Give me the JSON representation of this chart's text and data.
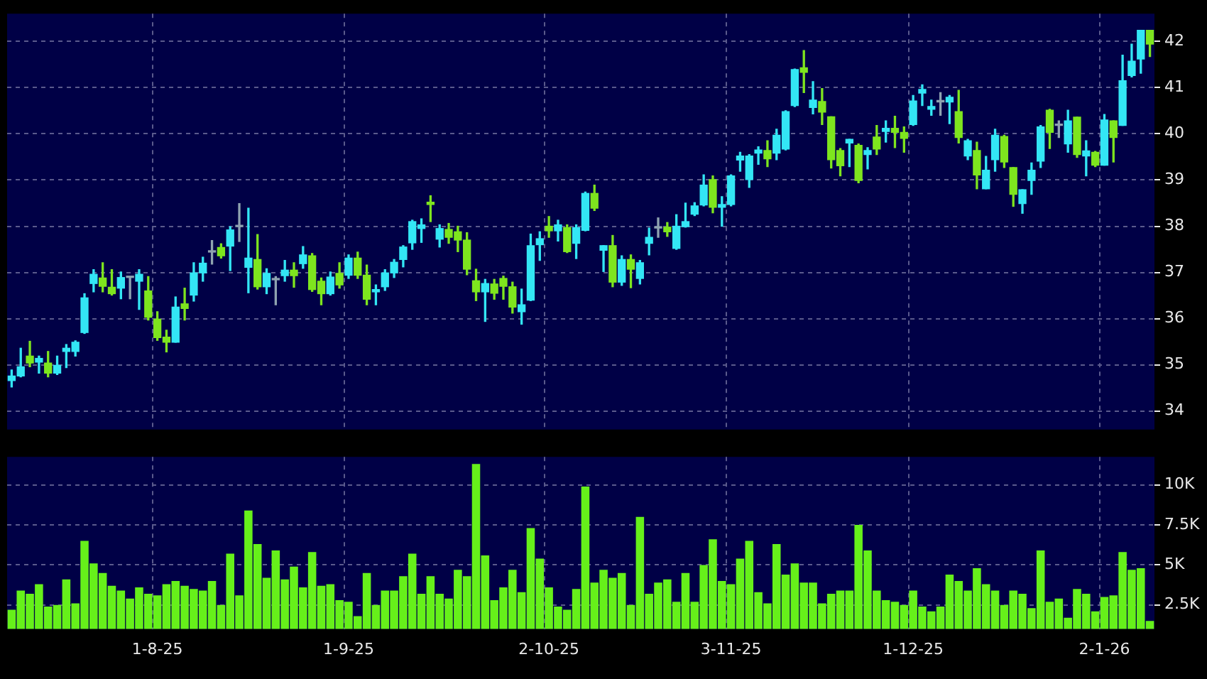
{
  "chart_data": [
    {
      "type": "candlestick",
      "categories": [
        null,
        null,
        null,
        null,
        null,
        null,
        null,
        null,
        null,
        null,
        null,
        null,
        null,
        null,
        null,
        null,
        null,
        null,
        null,
        null,
        null,
        null,
        null,
        null,
        null,
        null,
        null,
        null,
        null,
        null,
        null,
        null,
        null,
        null,
        null,
        null,
        null,
        null,
        null,
        null,
        null,
        null,
        null,
        null,
        null,
        null,
        null,
        null,
        null,
        null,
        null,
        null,
        null,
        null,
        null,
        null,
        null,
        null,
        null,
        null,
        null,
        null,
        null,
        null,
        null,
        null,
        null,
        null,
        null,
        null,
        null,
        null,
        null,
        null,
        null,
        null,
        null,
        null,
        null,
        null,
        null,
        null,
        null,
        null,
        null,
        null,
        null,
        null,
        null,
        null,
        null,
        null,
        null,
        null,
        null,
        null,
        null,
        null,
        null,
        null,
        null,
        null,
        null,
        null,
        null,
        null,
        null,
        null,
        null,
        null,
        null,
        null,
        null,
        null,
        null,
        null,
        null,
        null,
        null,
        null,
        null,
        null,
        null,
        null,
        null,
        null
      ],
      "ohlc": [
        [
          34.66,
          34.89,
          34.52,
          34.76
        ],
        [
          34.76,
          35.36,
          34.74,
          34.96
        ],
        [
          35.19,
          35.51,
          34.96,
          35.04
        ],
        [
          35.06,
          35.19,
          34.82,
          35.14
        ],
        [
          35.04,
          35.29,
          34.74,
          34.82
        ],
        [
          34.82,
          35.19,
          34.79,
          34.99
        ],
        [
          35.29,
          35.44,
          34.94,
          35.36
        ],
        [
          35.29,
          35.52,
          35.19,
          35.49
        ],
        [
          35.7,
          36.54,
          35.68,
          36.45
        ],
        [
          36.76,
          37.06,
          36.58,
          36.96
        ],
        [
          36.88,
          37.21,
          36.58,
          36.7
        ],
        [
          36.68,
          37.06,
          36.51,
          36.54
        ],
        [
          36.66,
          37.01,
          36.43,
          36.89
        ],
        [
          36.89,
          36.9,
          36.43,
          36.89
        ],
        [
          36.81,
          37.06,
          36.2,
          36.96
        ],
        [
          36.6,
          36.91,
          35.97,
          36.03
        ],
        [
          35.99,
          36.15,
          35.53,
          35.59
        ],
        [
          35.6,
          35.75,
          35.28,
          35.49
        ],
        [
          35.49,
          36.47,
          35.49,
          36.25
        ],
        [
          36.32,
          36.66,
          35.97,
          36.22
        ],
        [
          36.51,
          37.21,
          36.38,
          36.99
        ],
        [
          36.99,
          37.33,
          36.81,
          37.2
        ],
        [
          37.44,
          37.69,
          37.18,
          37.44
        ],
        [
          37.54,
          37.62,
          37.31,
          37.36
        ],
        [
          37.57,
          37.99,
          37.04,
          37.92
        ],
        [
          37.99,
          38.49,
          37.67,
          37.99
        ],
        [
          37.11,
          38.39,
          36.56,
          37.31
        ],
        [
          37.28,
          37.82,
          36.64,
          36.69
        ],
        [
          36.69,
          37.08,
          36.54,
          36.98
        ],
        [
          36.84,
          36.91,
          36.3,
          36.84
        ],
        [
          36.93,
          37.26,
          36.81,
          37.05
        ],
        [
          37.05,
          37.21,
          36.68,
          36.93
        ],
        [
          37.19,
          37.56,
          37.09,
          37.38
        ],
        [
          37.36,
          37.41,
          36.59,
          36.63
        ],
        [
          36.81,
          36.88,
          36.3,
          36.54
        ],
        [
          36.54,
          37.01,
          36.51,
          36.9
        ],
        [
          36.98,
          37.21,
          36.66,
          36.73
        ],
        [
          36.94,
          37.38,
          36.87,
          37.31
        ],
        [
          37.31,
          37.44,
          36.87,
          36.94
        ],
        [
          36.94,
          37.16,
          36.3,
          36.42
        ],
        [
          36.58,
          36.73,
          36.3,
          36.63
        ],
        [
          36.69,
          37.06,
          36.61,
          36.99
        ],
        [
          36.99,
          37.28,
          36.89,
          37.22
        ],
        [
          37.28,
          37.58,
          37.12,
          37.55
        ],
        [
          37.64,
          38.13,
          37.5,
          38.1
        ],
        [
          37.95,
          38.16,
          37.65,
          38.03
        ],
        [
          38.52,
          38.66,
          38.1,
          38.47
        ],
        [
          37.72,
          38.03,
          37.55,
          37.95
        ],
        [
          37.93,
          38.06,
          37.63,
          37.76
        ],
        [
          37.88,
          38.0,
          37.45,
          37.7
        ],
        [
          37.7,
          37.86,
          36.95,
          37.07
        ],
        [
          36.82,
          37.07,
          36.39,
          36.58
        ],
        [
          36.58,
          36.85,
          35.94,
          36.76
        ],
        [
          36.75,
          36.85,
          36.42,
          36.55
        ],
        [
          36.87,
          36.92,
          36.42,
          36.7
        ],
        [
          36.69,
          36.79,
          36.12,
          36.25
        ],
        [
          36.15,
          36.64,
          35.88,
          36.3
        ],
        [
          36.4,
          37.83,
          36.39,
          37.58
        ],
        [
          37.6,
          37.88,
          37.26,
          37.73
        ],
        [
          38.0,
          38.21,
          37.76,
          37.9
        ],
        [
          37.9,
          38.13,
          37.68,
          38.03
        ],
        [
          37.97,
          38.03,
          37.43,
          37.45
        ],
        [
          37.63,
          38.03,
          37.3,
          37.97
        ],
        [
          37.91,
          38.74,
          37.9,
          38.71
        ],
        [
          38.71,
          38.89,
          38.34,
          38.39
        ],
        [
          37.48,
          37.58,
          37.02,
          37.58
        ],
        [
          37.58,
          37.8,
          36.69,
          36.79
        ],
        [
          36.79,
          37.36,
          36.72,
          37.28
        ],
        [
          37.28,
          37.38,
          36.67,
          37.07
        ],
        [
          36.87,
          37.26,
          36.75,
          37.21
        ],
        [
          37.63,
          37.96,
          37.38,
          37.76
        ],
        [
          37.96,
          38.18,
          37.76,
          37.96
        ],
        [
          37.98,
          38.08,
          37.78,
          37.88
        ],
        [
          37.52,
          38.25,
          37.5,
          38.0
        ],
        [
          37.99,
          38.5,
          37.98,
          38.1
        ],
        [
          38.26,
          38.51,
          38.23,
          38.44
        ],
        [
          38.46,
          39.11,
          38.44,
          38.89
        ],
        [
          39.01,
          39.09,
          38.29,
          38.41
        ],
        [
          38.41,
          38.64,
          38.0,
          38.47
        ],
        [
          38.47,
          39.11,
          38.44,
          39.09
        ],
        [
          39.43,
          39.6,
          39.19,
          39.52
        ],
        [
          39.01,
          39.55,
          38.84,
          39.52
        ],
        [
          39.58,
          39.72,
          39.34,
          39.65
        ],
        [
          39.64,
          39.85,
          39.29,
          39.46
        ],
        [
          39.58,
          40.1,
          39.44,
          39.97
        ],
        [
          39.67,
          40.5,
          39.65,
          40.48
        ],
        [
          40.61,
          41.4,
          40.59,
          41.39
        ],
        [
          41.43,
          41.8,
          40.89,
          41.33
        ],
        [
          40.57,
          41.13,
          40.43,
          40.73
        ],
        [
          40.7,
          40.98,
          40.2,
          40.47
        ],
        [
          40.37,
          40.37,
          39.26,
          39.44
        ],
        [
          39.64,
          39.68,
          39.09,
          39.31
        ],
        [
          39.8,
          39.88,
          39.29,
          39.88
        ],
        [
          39.75,
          39.78,
          38.94,
          38.99
        ],
        [
          39.55,
          39.7,
          39.24,
          39.64
        ],
        [
          39.93,
          40.18,
          39.55,
          39.67
        ],
        [
          40.05,
          40.28,
          39.82,
          40.12
        ],
        [
          40.12,
          40.38,
          39.7,
          40.03
        ],
        [
          40.03,
          40.15,
          39.6,
          39.9
        ],
        [
          40.2,
          40.83,
          40.18,
          40.71
        ],
        [
          40.88,
          41.06,
          40.61,
          40.96
        ],
        [
          40.53,
          40.73,
          40.4,
          40.59
        ],
        [
          40.69,
          40.89,
          40.4,
          40.69
        ],
        [
          40.69,
          40.83,
          40.22,
          40.79
        ],
        [
          40.48,
          40.94,
          39.8,
          39.92
        ],
        [
          39.52,
          39.88,
          39.44,
          39.85
        ],
        [
          39.64,
          39.82,
          38.81,
          39.11
        ],
        [
          38.81,
          39.51,
          38.81,
          39.21
        ],
        [
          39.44,
          40.1,
          39.19,
          39.97
        ],
        [
          39.94,
          39.97,
          39.27,
          39.39
        ],
        [
          39.27,
          39.27,
          38.43,
          38.69
        ],
        [
          38.49,
          38.79,
          38.28,
          38.79
        ],
        [
          38.99,
          39.37,
          38.69,
          39.21
        ],
        [
          39.41,
          40.18,
          39.27,
          40.15
        ],
        [
          40.51,
          40.53,
          39.68,
          40.03
        ],
        [
          40.18,
          40.28,
          39.92,
          40.18
        ],
        [
          39.78,
          40.51,
          39.6,
          40.28
        ],
        [
          40.36,
          40.36,
          39.49,
          39.55
        ],
        [
          39.52,
          39.85,
          39.09,
          39.63
        ],
        [
          39.6,
          39.62,
          39.29,
          39.32
        ],
        [
          39.32,
          40.42,
          39.32,
          40.3
        ],
        [
          40.28,
          40.28,
          39.39,
          39.92
        ],
        [
          40.18,
          41.7,
          40.18,
          41.15
        ],
        [
          41.26,
          41.94,
          41.23,
          41.57
        ],
        [
          41.62,
          42.24,
          41.31,
          42.24
        ],
        [
          42.24,
          42.24,
          41.67,
          41.94
        ]
      ],
      "colors": [
        "#33e6f5",
        "#33e6f5",
        "#7ee51e",
        "#33e6f5",
        "#7ee51e",
        "#33e6f5",
        "#33e6f5",
        "#33e6f5",
        "#33e6f5",
        "#33e6f5",
        "#7ee51e",
        "#7ee51e",
        "#33e6f5",
        "#8fa3b0",
        "#33e6f5",
        "#7ee51e",
        "#7ee51e",
        "#7ee51e",
        "#33e6f5",
        "#7ee51e",
        "#33e6f5",
        "#33e6f5",
        "#8fa3b0",
        "#7ee51e",
        "#33e6f5",
        "#8fa3b0",
        "#33e6f5",
        "#7ee51e",
        "#33e6f5",
        "#8fa3b0",
        "#33e6f5",
        "#7ee51e",
        "#33e6f5",
        "#7ee51e",
        "#7ee51e",
        "#33e6f5",
        "#7ee51e",
        "#33e6f5",
        "#7ee51e",
        "#7ee51e",
        "#33e6f5",
        "#33e6f5",
        "#33e6f5",
        "#33e6f5",
        "#33e6f5",
        "#33e6f5",
        "#7ee51e",
        "#33e6f5",
        "#7ee51e",
        "#7ee51e",
        "#7ee51e",
        "#7ee51e",
        "#33e6f5",
        "#7ee51e",
        "#7ee51e",
        "#7ee51e",
        "#33e6f5",
        "#33e6f5",
        "#33e6f5",
        "#7ee51e",
        "#33e6f5",
        "#7ee51e",
        "#33e6f5",
        "#33e6f5",
        "#7ee51e",
        "#33e6f5",
        "#7ee51e",
        "#33e6f5",
        "#7ee51e",
        "#33e6f5",
        "#33e6f5",
        "#8fa3b0",
        "#7ee51e",
        "#33e6f5",
        "#33e6f5",
        "#33e6f5",
        "#33e6f5",
        "#7ee51e",
        "#33e6f5",
        "#33e6f5",
        "#33e6f5",
        "#33e6f5",
        "#33e6f5",
        "#7ee51e",
        "#33e6f5",
        "#33e6f5",
        "#33e6f5",
        "#7ee51e",
        "#33e6f5",
        "#7ee51e",
        "#7ee51e",
        "#7ee51e",
        "#33e6f5",
        "#7ee51e",
        "#33e6f5",
        "#7ee51e",
        "#33e6f5",
        "#7ee51e",
        "#7ee51e",
        "#33e6f5",
        "#33e6f5",
        "#33e6f5",
        "#8fa3b0",
        "#33e6f5",
        "#7ee51e",
        "#33e6f5",
        "#7ee51e",
        "#33e6f5",
        "#33e6f5",
        "#7ee51e",
        "#7ee51e",
        "#33e6f5",
        "#33e6f5",
        "#33e6f5",
        "#7ee51e",
        "#8fa3b0",
        "#33e6f5",
        "#7ee51e",
        "#33e6f5",
        "#7ee51e",
        "#33e6f5",
        "#7ee51e",
        "#33e6f5",
        "#33e6f5",
        "#33e6f5",
        "#7ee51e"
      ],
      "ylim": [
        33.6,
        42.6
      ],
      "yticks": [
        34,
        35,
        36,
        37,
        38,
        39,
        40,
        41,
        42
      ],
      "grid": true,
      "tick_labels": "y"
    },
    {
      "type": "bar",
      "categories": [
        null,
        null,
        null,
        null,
        null,
        null,
        null,
        null,
        null,
        null,
        null,
        null,
        null,
        null,
        null,
        null,
        "1-8-25",
        null,
        null,
        null,
        null,
        null,
        null,
        null,
        null,
        null,
        null,
        null,
        null,
        null,
        null,
        null,
        null,
        null,
        null,
        null,
        null,
        "1-9-25",
        null,
        null,
        null,
        null,
        null,
        null,
        null,
        null,
        null,
        null,
        null,
        null,
        null,
        null,
        null,
        null,
        null,
        null,
        null,
        null,
        null,
        "2-10-25",
        null,
        null,
        null,
        null,
        null,
        null,
        null,
        null,
        null,
        null,
        null,
        null,
        null,
        null,
        null,
        null,
        null,
        null,
        null,
        "3-11-25",
        null,
        null,
        null,
        null,
        null,
        null,
        null,
        null,
        null,
        null,
        null,
        null,
        null,
        null,
        null,
        null,
        null,
        null,
        null,
        "1-12-25",
        null,
        null,
        null,
        null,
        null,
        null,
        null,
        null,
        null,
        null,
        null,
        null,
        null,
        null,
        null,
        null,
        null,
        null,
        null,
        null,
        "2-1-26",
        null,
        null,
        null,
        null,
        null
      ],
      "values": [
        2.2,
        3.4,
        3.2,
        3.8,
        2.4,
        2.5,
        4.1,
        2.6,
        6.5,
        5.1,
        4.5,
        3.7,
        3.4,
        2.9,
        3.6,
        3.2,
        3.1,
        3.8,
        4.0,
        3.7,
        3.5,
        3.4,
        4.0,
        2.5,
        5.7,
        3.1,
        8.4,
        6.3,
        4.2,
        5.9,
        4.1,
        4.9,
        3.6,
        5.8,
        3.7,
        3.8,
        2.8,
        2.7,
        1.8,
        4.5,
        2.5,
        3.4,
        3.4,
        4.3,
        5.7,
        3.2,
        4.3,
        3.2,
        2.9,
        4.7,
        4.3,
        11.3,
        5.6,
        2.8,
        3.6,
        4.7,
        3.3,
        7.3,
        5.4,
        3.6,
        2.4,
        2.2,
        3.5,
        9.9,
        3.9,
        4.7,
        4.2,
        4.5,
        2.5,
        8.0,
        3.2,
        3.9,
        4.1,
        2.7,
        4.5,
        2.7,
        5.0,
        6.6,
        4.0,
        3.8,
        5.4,
        6.5,
        3.3,
        2.6,
        6.3,
        4.4,
        5.1,
        3.9,
        3.9,
        2.6,
        3.2,
        3.4,
        3.4,
        7.5,
        5.9,
        3.4,
        2.8,
        2.7,
        2.5,
        3.4,
        2.4,
        2.1,
        2.4,
        4.4,
        4.0,
        3.4,
        4.8,
        3.8,
        3.4,
        2.5,
        3.4,
        3.2,
        2.3,
        5.9,
        2.7,
        2.9,
        1.7,
        3.5,
        3.2,
        2.1,
        3.0,
        3.1,
        5.8,
        4.7,
        4.8,
        1.5
      ],
      "color": "#66f01a",
      "ylim": [
        1,
        11.75
      ],
      "yticks": [
        {
          "value": 2.5,
          "label": "2.5K"
        },
        {
          "value": 5,
          "label": "5K"
        },
        {
          "value": 7.5,
          "label": "7.5K"
        },
        {
          "value": 10,
          "label": "10K"
        }
      ],
      "grid": true
    }
  ]
}
